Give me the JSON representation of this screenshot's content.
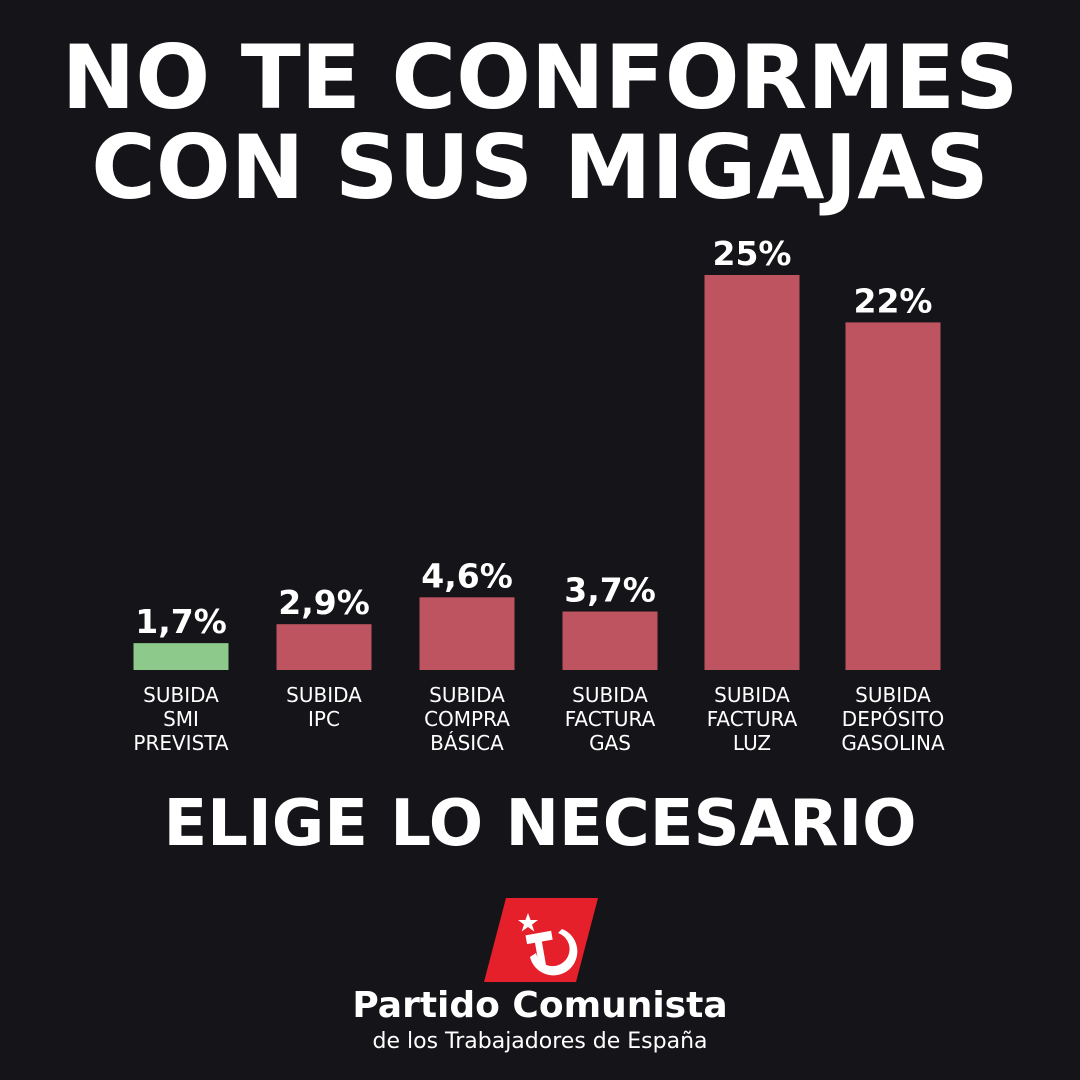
{
  "header": {
    "line1": "NO TE CONFORMES",
    "line2": "CON SUS MIGAJAS"
  },
  "chart_data": {
    "type": "bar",
    "categories": [
      [
        "SUBIDA",
        "SMI",
        "PREVISTA"
      ],
      [
        "SUBIDA",
        "IPC"
      ],
      [
        "SUBIDA",
        "COMPRA",
        "BÁSICA"
      ],
      [
        "SUBIDA",
        "FACTURA",
        "GAS"
      ],
      [
        "SUBIDA",
        "FACTURA",
        "LUZ"
      ],
      [
        "SUBIDA",
        "DEPÓSITO",
        "GASOLINA"
      ]
    ],
    "values": [
      1.7,
      2.9,
      4.6,
      3.7,
      25,
      22
    ],
    "value_labels": [
      "1,7%",
      "2,9%",
      "4,6%",
      "3,7%",
      "25%",
      "22%"
    ],
    "bar_colors": [
      "#8cc98a",
      "#bd5460",
      "#bd5460",
      "#bd5460",
      "#bd5460",
      "#bd5460"
    ],
    "ylim": [
      0,
      25
    ],
    "grid": false,
    "legend": "none"
  },
  "slogan": "ELIGE LO NECESARIO",
  "brand": {
    "name": "Partido Comunista",
    "subtitle": "de los Trabajadores de España",
    "logo_icon": "hammer-sickle-star-icon",
    "logo_color": "#e5202a"
  }
}
